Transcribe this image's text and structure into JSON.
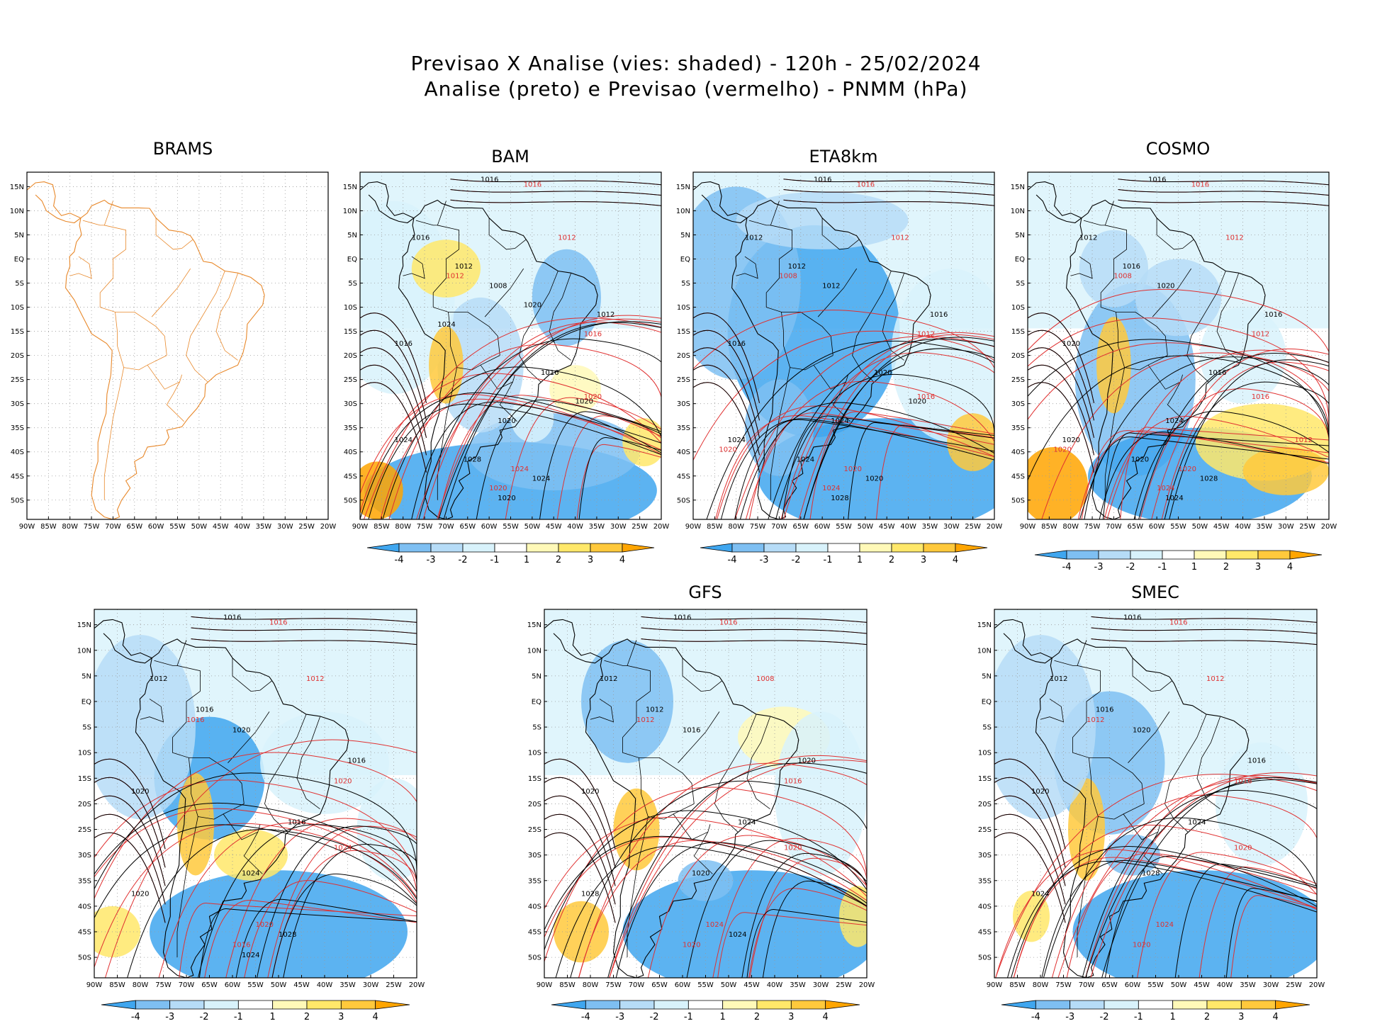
{
  "figure": {
    "title_line1": "Previsao X Analise (vies: shaded) - 120h - 25/02/2024",
    "title_line2": "Analise (preto) e Previsao (vermelho) - PNMM (hPa)"
  },
  "axes": {
    "lat_labels": [
      "15N",
      "10N",
      "5N",
      "EQ",
      "5S",
      "10S",
      "15S",
      "20S",
      "25S",
      "30S",
      "35S",
      "40S",
      "45S",
      "50S"
    ],
    "lon_labels": [
      "90W",
      "85W",
      "80W",
      "75W",
      "70W",
      "65W",
      "60W",
      "55W",
      "50W",
      "45W",
      "40W",
      "35W",
      "30W",
      "25W",
      "20W"
    ]
  },
  "colorbar": {
    "labels": [
      "-4",
      "-3",
      "-2",
      "-1",
      "1",
      "2",
      "3",
      "4"
    ],
    "colors": [
      "#3fa6ef",
      "#7ebff2",
      "#b6dcf7",
      "#d8f2fb",
      "#ffffff",
      "#fff9b8",
      "#ffe86a",
      "#ffc93c",
      "#ffa500"
    ]
  },
  "colors": {
    "analysis": "#000000",
    "forecast": "#e03030",
    "border_brams": "#e8882a"
  },
  "panels": [
    {
      "id": "brams",
      "name": "BRAMS",
      "has_data": false,
      "contour_labels": [],
      "forecast_labels": []
    },
    {
      "id": "bam",
      "name": "BAM",
      "has_data": true,
      "contour_labels": [
        "1016",
        "1016",
        "1012",
        "1008",
        "1012",
        "1016",
        "1016",
        "1020",
        "1024",
        "1024",
        "1020",
        "1028",
        "1020",
        "1024",
        "1020"
      ],
      "forecast_labels": [
        "1016",
        "1012",
        "1012",
        "1016",
        "1020",
        "1024",
        "1020"
      ]
    },
    {
      "id": "eta8km",
      "name": "ETA8km",
      "has_data": true,
      "contour_labels": [
        "1016",
        "1012",
        "1012",
        "1012",
        "1016",
        "1016",
        "1020",
        "1024",
        "1024",
        "1020",
        "1028",
        "1024",
        "1020"
      ],
      "forecast_labels": [
        "1016",
        "1012",
        "1008",
        "1012",
        "1016",
        "1020",
        "1024",
        "1020"
      ]
    },
    {
      "id": "cosmo",
      "name": "COSMO",
      "has_data": true,
      "contour_labels": [
        "1016",
        "1012",
        "1016",
        "1020",
        "1016",
        "1020",
        "1016",
        "1024",
        "1020",
        "1028",
        "1024",
        "1020"
      ],
      "forecast_labels": [
        "1016",
        "1012",
        "1008",
        "1012",
        "1016",
        "1020",
        "1024",
        "1020",
        "1012"
      ]
    },
    {
      "id": "panel5",
      "name": "",
      "has_data": true,
      "contour_labels": [
        "1016",
        "1012",
        "1016",
        "1020",
        "1016",
        "1020",
        "1016",
        "1024",
        "1020",
        "1028",
        "1024"
      ],
      "forecast_labels": [
        "1016",
        "1012",
        "1016",
        "1020",
        "1024",
        "1020",
        "1016"
      ]
    },
    {
      "id": "gfs",
      "name": "GFS",
      "has_data": true,
      "contour_labels": [
        "1016",
        "1012",
        "1012",
        "1016",
        "1020",
        "1020",
        "1024",
        "1020",
        "1028",
        "1024"
      ],
      "forecast_labels": [
        "1016",
        "1008",
        "1012",
        "1016",
        "1020",
        "1024",
        "1020"
      ]
    },
    {
      "id": "smec",
      "name": "SMEC",
      "has_data": true,
      "contour_labels": [
        "1016",
        "1012",
        "1016",
        "1020",
        "1016",
        "1020",
        "1024",
        "1028",
        "1024"
      ],
      "forecast_labels": [
        "1016",
        "1012",
        "1012",
        "1016",
        "1020",
        "1024",
        "1020"
      ]
    }
  ]
}
